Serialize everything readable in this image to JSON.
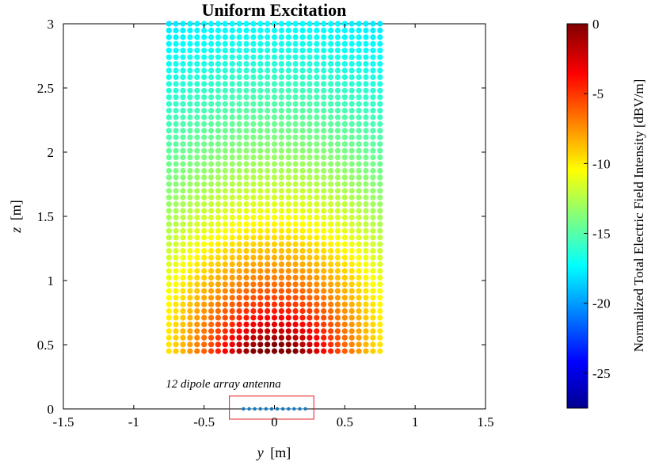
{
  "chart_data": {
    "type": "scatter",
    "title": "Uniform Excitation",
    "xlabel_var": "y",
    "xlabel_unit": "[m]",
    "ylabel_var": "z",
    "ylabel_unit": "[m]",
    "xlim": [
      -1.5,
      1.5
    ],
    "ylim": [
      0,
      3
    ],
    "xticks": [
      "-1.5",
      "-1",
      "-0.5",
      "0",
      "0.5",
      "1",
      "1.5"
    ],
    "yticks": [
      "0",
      "0.5",
      "1",
      "1.5",
      "2",
      "2.5",
      "3"
    ],
    "grid": false,
    "colormap": "jet",
    "field_grid": {
      "y_range": [
        -0.75,
        0.75
      ],
      "z_range": [
        0.45,
        3.0
      ],
      "columns": 31,
      "rows": 50,
      "max_at": {
        "y": 0,
        "z": 0.45
      },
      "description_values": "normalized total electric field intensity in dBV/m, range -27 to 0"
    },
    "antenna": {
      "label": "12 dipole array antenna",
      "elements": 12,
      "y": [
        -0.22,
        -0.18,
        -0.14,
        -0.1,
        -0.06,
        -0.02,
        0.02,
        0.06,
        0.1,
        0.14,
        0.18,
        0.22
      ],
      "z": 0,
      "box_y": [
        -0.32,
        0.28
      ],
      "box_z": [
        -0.08,
        0.1
      ],
      "label_color": "#e41a1c",
      "dot_color": "#1f77b4"
    },
    "colorbar": {
      "label": "Normalized Total Electric Field Intensity [dBV/m]",
      "range": [
        -27.5,
        0
      ],
      "ticks": [
        "0",
        "-5",
        "-10",
        "-15",
        "-20",
        "-25"
      ],
      "tick_values": [
        0,
        -5,
        -10,
        -15,
        -20,
        -25
      ]
    }
  }
}
